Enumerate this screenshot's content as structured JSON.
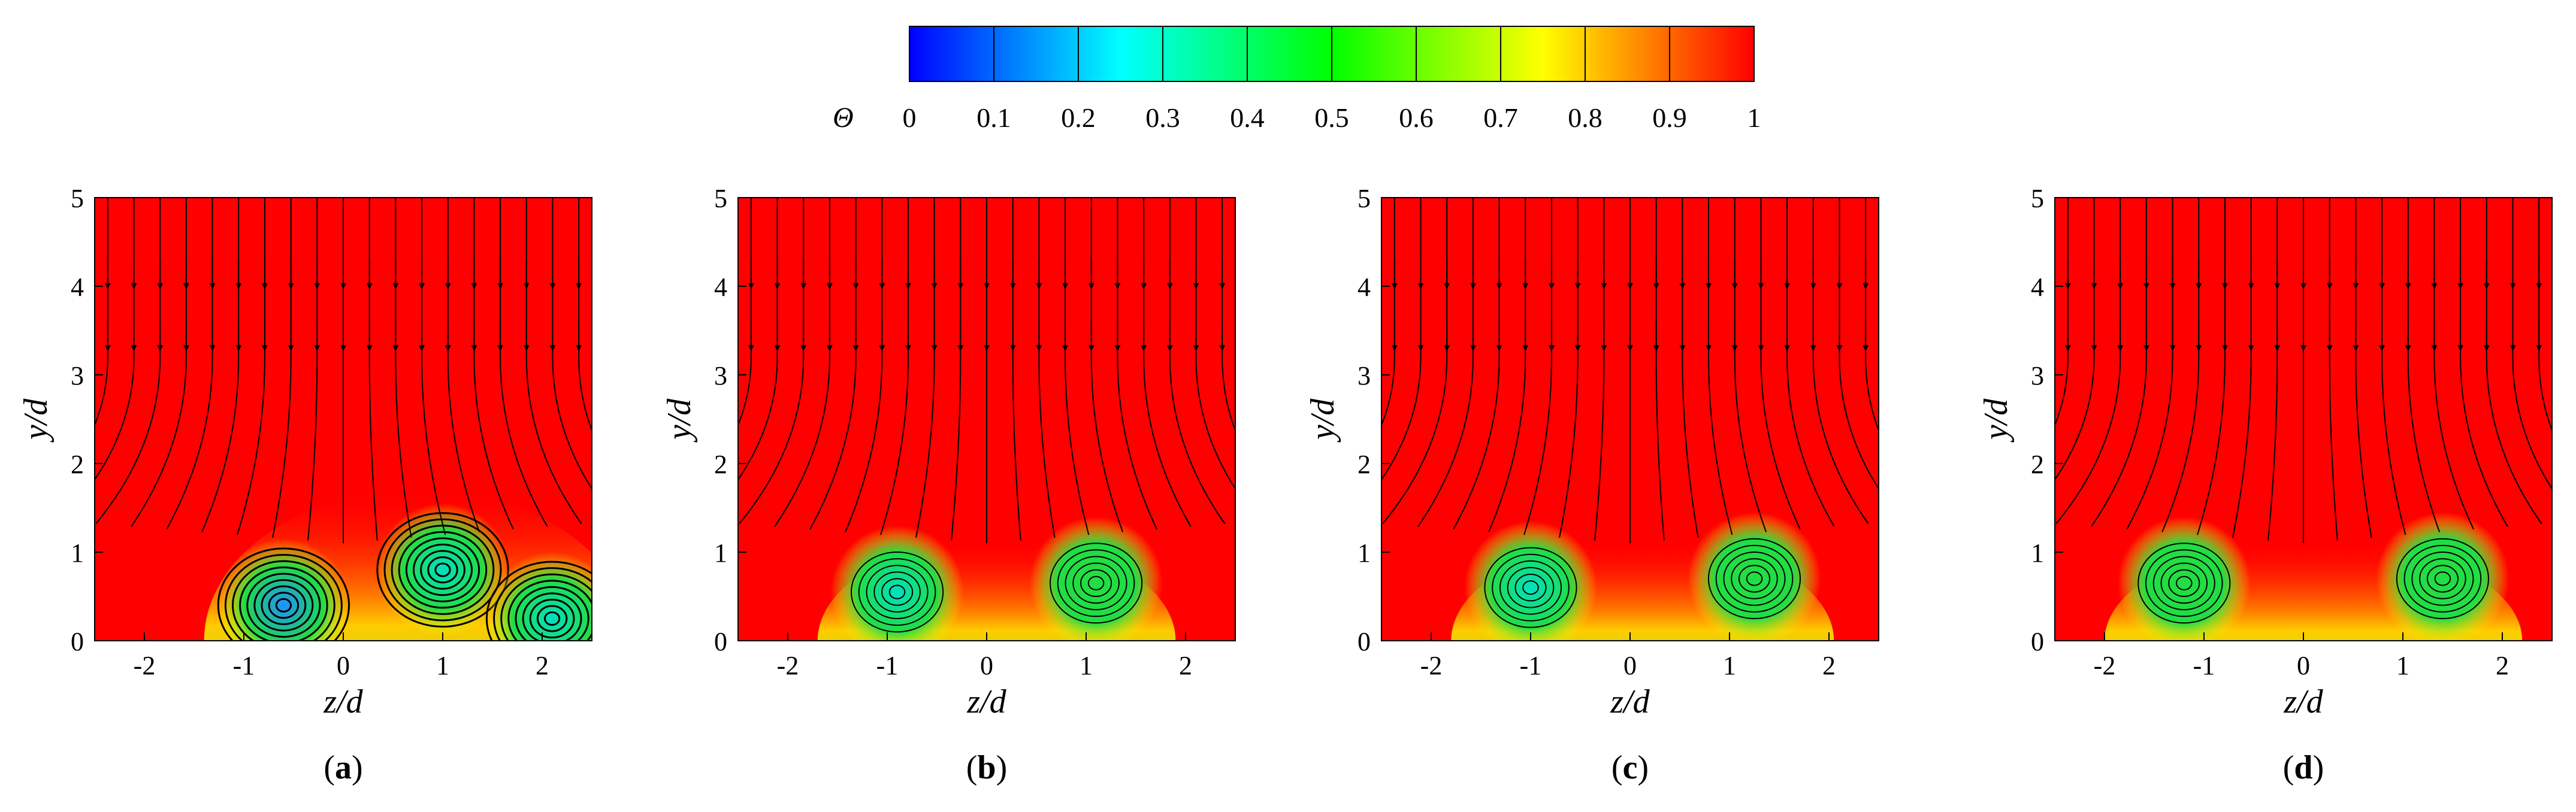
{
  "colorbar": {
    "symbol": "Θ",
    "ticks": [
      "0",
      "0.1",
      "0.2",
      "0.3",
      "0.4",
      "0.5",
      "0.6",
      "0.7",
      "0.8",
      "0.9",
      "1"
    ],
    "stops": [
      "#0000ff",
      "#0080ff",
      "#00ffff",
      "#00ff80",
      "#00ff00",
      "#80ff00",
      "#ffff00",
      "#ff8000",
      "#ff0000"
    ]
  },
  "chart_data": [
    {
      "type": "heatmap",
      "panel_label": "a",
      "xlabel": "z/d",
      "ylabel": "y/d",
      "xlim": [
        -2.5,
        2.5
      ],
      "ylim": [
        0,
        5
      ],
      "xticks": [
        "-2",
        "-1",
        "0",
        "1",
        "2"
      ],
      "yticks": [
        "0",
        "1",
        "2",
        "3",
        "4",
        "5"
      ],
      "vortices": [
        {
          "z": -0.6,
          "y": 0.4,
          "theta_min": 0.15
        },
        {
          "z": 1.0,
          "y": 0.8,
          "theta_min": 0.35
        },
        {
          "z": 2.1,
          "y": 0.25,
          "theta_min": 0.35
        }
      ]
    },
    {
      "type": "heatmap",
      "panel_label": "b",
      "xlabel": "z/d",
      "ylabel": "y/d",
      "xlim": [
        -2.5,
        2.5
      ],
      "ylim": [
        0,
        5
      ],
      "xticks": [
        "-2",
        "-1",
        "0",
        "1",
        "2"
      ],
      "yticks": [
        "0",
        "1",
        "2",
        "3",
        "4",
        "5"
      ],
      "vortices": [
        {
          "z": -0.9,
          "y": 0.55,
          "theta_min": 0.3
        },
        {
          "z": 1.1,
          "y": 0.65,
          "theta_min": 0.45
        }
      ]
    },
    {
      "type": "heatmap",
      "panel_label": "c",
      "xlabel": "z/d",
      "ylabel": "y/d",
      "xlim": [
        -2.5,
        2.5
      ],
      "ylim": [
        0,
        5
      ],
      "xticks": [
        "-2",
        "-1",
        "0",
        "1",
        "2"
      ],
      "yticks": [
        "0",
        "1",
        "2",
        "3",
        "4",
        "5"
      ],
      "vortices": [
        {
          "z": -1.0,
          "y": 0.6,
          "theta_min": 0.35
        },
        {
          "z": 1.25,
          "y": 0.7,
          "theta_min": 0.45
        }
      ]
    },
    {
      "type": "heatmap",
      "panel_label": "d",
      "xlabel": "z/d",
      "ylabel": "y/d",
      "xlim": [
        -2.5,
        2.5
      ],
      "ylim": [
        0,
        5
      ],
      "xticks": [
        "-2",
        "-1",
        "0",
        "1",
        "2"
      ],
      "yticks": [
        "0",
        "1",
        "2",
        "3",
        "4",
        "5"
      ],
      "vortices": [
        {
          "z": -1.2,
          "y": 0.65,
          "theta_min": 0.5
        },
        {
          "z": 1.4,
          "y": 0.7,
          "theta_min": 0.5
        }
      ]
    }
  ]
}
